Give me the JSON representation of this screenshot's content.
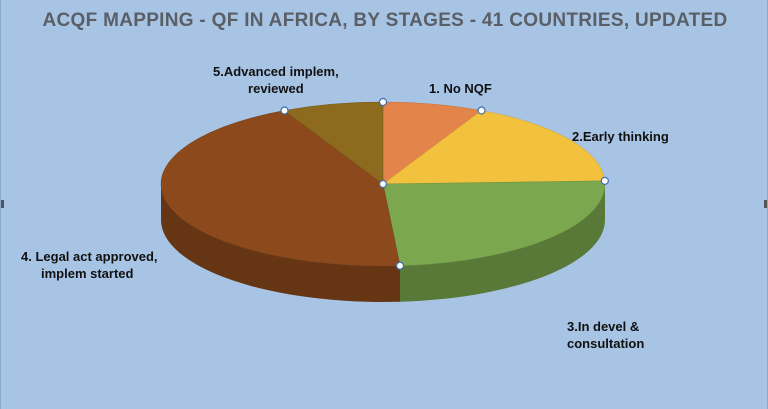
{
  "chart_data": {
    "type": "pie",
    "title": "ACQF MAPPING - QF IN AFRICA, BY STAGES - 41 COUNTRIES, UPDATED",
    "categories": [
      "1. No NQF",
      "2.Early thinking",
      "3.In devel & consultation",
      "4. Legal act approved, implem started",
      "5.Advanced implem, reviewed"
    ],
    "label_lines": [
      [
        "1. No NQF"
      ],
      [
        "2.Early thinking"
      ],
      [
        "3.In devel &",
        "consultation"
      ],
      [
        "4. Legal act approved,",
        "implem started"
      ],
      [
        "5.Advanced implem,",
        "reviewed"
      ]
    ],
    "values": [
      3,
      7,
      10,
      18,
      3
    ],
    "colors": [
      "#e3854a",
      "#f2c13d",
      "#7ba84f",
      "#8c4a1c",
      "#8c6a1e"
    ],
    "legend": "none",
    "style": "3d-pie"
  }
}
